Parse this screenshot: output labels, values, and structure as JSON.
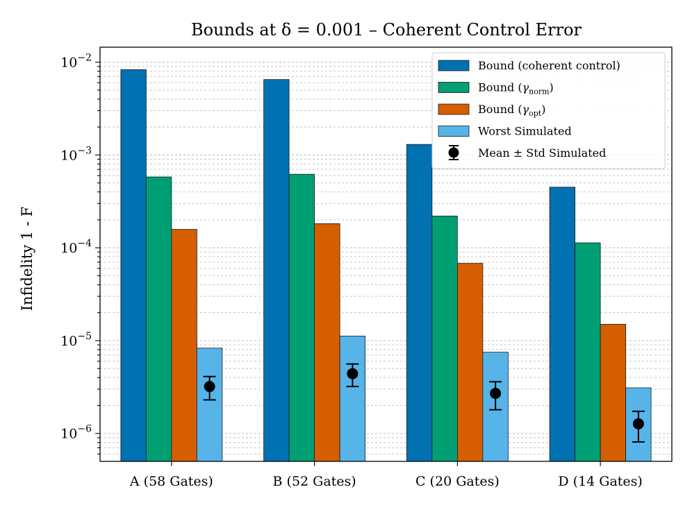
{
  "chart_data": {
    "type": "bar",
    "title": "Bounds at δ = 0.001 – Coherent Control Error",
    "xlabel": "",
    "ylabel": "Infidelity 1 - F",
    "yscale": "log",
    "ylim": [
      5e-07,
      0.0145
    ],
    "ytick_labels": [
      {
        "value": 1e-06,
        "base": "10",
        "exp": "−6"
      },
      {
        "value": 1e-05,
        "base": "10",
        "exp": "−5"
      },
      {
        "value": 0.0001,
        "base": "10",
        "exp": "−4"
      },
      {
        "value": 0.001,
        "base": "10",
        "exp": "−3"
      },
      {
        "value": 0.01,
        "base": "10",
        "exp": "−2"
      }
    ],
    "categories": [
      "A (58 Gates)",
      "B (52 Gates)",
      "C (20 Gates)",
      "D (14 Gates)"
    ],
    "series": [
      {
        "name": "Bound (coherent control)",
        "color": "#0072B2",
        "values": [
          0.0083,
          0.0065,
          0.0013,
          0.00045
        ]
      },
      {
        "name": "Bound (γnorm)",
        "color": "#009E73",
        "values": [
          0.00058,
          0.00062,
          0.00022,
          0.000113
        ]
      },
      {
        "name": "Bound (γopt)",
        "color": "#D55E00",
        "values": [
          0.000158,
          0.000182,
          6.8e-05,
          1.5e-05
        ]
      },
      {
        "name": "Worst Simulated",
        "color": "#56B4E9",
        "values": [
          8.3e-06,
          1.12e-05,
          7.5e-06,
          3.1e-06
        ]
      }
    ],
    "errorbar_series": {
      "name": "Mean ± Std Simulated",
      "color": "#000000",
      "mean": [
        3.2e-06,
        4.4e-06,
        2.7e-06,
        1.27e-06
      ],
      "std": [
        9e-07,
        1.2e-06,
        9e-07,
        4.6e-07
      ]
    },
    "legend": {
      "position": "top-right",
      "entries": [
        {
          "label": "Bound (coherent control)",
          "kind": "patch",
          "color": "#0072B2",
          "sub": ""
        },
        {
          "label": "Bound (",
          "kind": "patch",
          "color": "#009E73",
          "symbol": "γ",
          "sub": "norm",
          "suffix": ")"
        },
        {
          "label": "Bound (",
          "kind": "patch",
          "color": "#D55E00",
          "symbol": "γ",
          "sub": "opt",
          "suffix": ")"
        },
        {
          "label": "Worst Simulated",
          "kind": "patch",
          "color": "#56B4E9",
          "sub": ""
        },
        {
          "label": "Mean ± Std Simulated",
          "kind": "errorbar",
          "color": "#000000",
          "sub": ""
        }
      ]
    },
    "grid": true
  }
}
